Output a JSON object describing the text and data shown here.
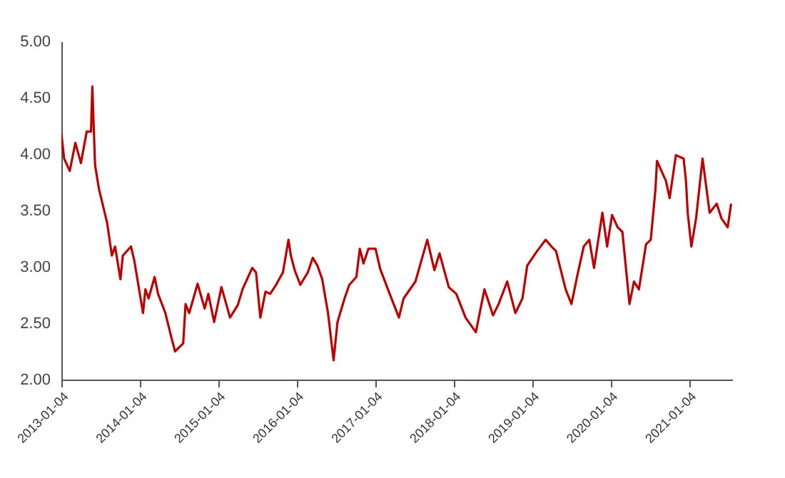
{
  "chart_data": {
    "type": "line",
    "grid": false,
    "marker": "none",
    "line_style": "solid",
    "xlim": [
      "2013-01-04",
      "2021-07-23"
    ],
    "xticks": [
      "2013-01-04",
      "2014-01-04",
      "2015-01-04",
      "2016-01-04",
      "2017-01-04",
      "2018-01-04",
      "2019-01-04",
      "2020-01-04",
      "2021-01-04"
    ],
    "ylim": [
      2,
      5
    ],
    "yticks": [
      {
        "value": 2,
        "label": "2.00"
      },
      {
        "value": 2.5,
        "label": "2.50"
      },
      {
        "value": 3,
        "label": "3.00"
      },
      {
        "value": 3.5,
        "label": "3.50"
      },
      {
        "value": 4,
        "label": "4.00"
      },
      {
        "value": 4.5,
        "label": "4.50"
      },
      {
        "value": 5,
        "label": "5.00"
      }
    ],
    "x": [
      "2013-01-04",
      "2013-01-17",
      "2013-02-12",
      "2013-03-10",
      "2013-04-05",
      "2013-05-02",
      "2013-05-22",
      "2013-05-28",
      "2013-06-10",
      "2013-06-28",
      "2013-08-05",
      "2013-08-27",
      "2013-09-11",
      "2013-10-06",
      "2013-10-17",
      "2013-11-24",
      "2013-12-09",
      "2014-01-19",
      "2014-01-30",
      "2014-02-14",
      "2014-03-14",
      "2014-03-30",
      "2014-05-03",
      "2014-05-30",
      "2014-06-17",
      "2014-07-25",
      "2014-08-05",
      "2014-08-22",
      "2014-09-30",
      "2014-11-02",
      "2014-11-19",
      "2014-12-16",
      "2015-01-19",
      "2015-02-28",
      "2015-04-05",
      "2015-04-27",
      "2015-06-11",
      "2015-06-29",
      "2015-07-19",
      "2015-08-12",
      "2015-09-03",
      "2015-09-30",
      "2015-11-01",
      "2015-11-27",
      "2015-12-08",
      "2015-12-26",
      "2016-01-21",
      "2016-02-25",
      "2016-03-19",
      "2016-04-10",
      "2016-05-02",
      "2016-05-29",
      "2016-06-24",
      "2016-07-12",
      "2016-08-14",
      "2016-09-05",
      "2016-10-08",
      "2016-10-24",
      "2016-11-10",
      "2016-12-03",
      "2017-01-05",
      "2017-01-27",
      "2017-03-12",
      "2017-04-24",
      "2017-05-16",
      "2017-07-10",
      "2017-09-03",
      "2017-10-06",
      "2017-10-30",
      "2017-12-12",
      "2018-01-16",
      "2018-02-28",
      "2018-04-17",
      "2018-05-27",
      "2018-07-06",
      "2018-08-01",
      "2018-09-10",
      "2018-10-18",
      "2018-11-20",
      "2018-12-12",
      "2019-01-27",
      "2019-03-08",
      "2019-04-04",
      "2019-04-25",
      "2019-06-09",
      "2019-07-06",
      "2019-08-03",
      "2019-09-01",
      "2019-09-27",
      "2019-10-19",
      "2019-11-27",
      "2019-12-19",
      "2020-01-11",
      "2020-02-06",
      "2020-02-28",
      "2020-04-01",
      "2020-04-22",
      "2020-05-15",
      "2020-06-17",
      "2020-07-09",
      "2020-07-31",
      "2020-08-07",
      "2020-09-18",
      "2020-10-05",
      "2020-11-03",
      "2020-12-09",
      "2020-12-20",
      "2020-12-28",
      "2021-01-14",
      "2021-02-05",
      "2021-03-07",
      "2021-04-09",
      "2021-05-12",
      "2021-06-03",
      "2021-07-02",
      "2021-07-18"
    ],
    "series": [
      {
        "color": "#c00000",
        "values": [
          4.18,
          3.96,
          3.85,
          4.1,
          3.92,
          4.2,
          4.2,
          4.6,
          3.9,
          3.69,
          3.39,
          3.1,
          3.18,
          2.89,
          3.1,
          3.18,
          3.06,
          2.59,
          2.8,
          2.72,
          2.91,
          2.76,
          2.59,
          2.38,
          2.25,
          2.32,
          2.67,
          2.59,
          2.85,
          2.63,
          2.76,
          2.51,
          2.82,
          2.55,
          2.66,
          2.8,
          2.99,
          2.95,
          2.55,
          2.78,
          2.76,
          2.84,
          2.95,
          3.24,
          3.1,
          2.97,
          2.84,
          2.95,
          3.08,
          3.01,
          2.89,
          2.59,
          2.17,
          2.51,
          2.72,
          2.84,
          2.91,
          3.16,
          3.03,
          3.16,
          3.16,
          2.98,
          2.76,
          2.55,
          2.72,
          2.87,
          3.24,
          2.97,
          3.12,
          2.82,
          2.76,
          2.55,
          2.42,
          2.8,
          2.57,
          2.67,
          2.87,
          2.59,
          2.72,
          3.01,
          3.14,
          3.24,
          3.18,
          3.14,
          2.8,
          2.67,
          2.93,
          3.18,
          3.24,
          2.99,
          3.48,
          3.18,
          3.46,
          3.35,
          3.31,
          2.67,
          2.87,
          2.8,
          3.2,
          3.24,
          3.69,
          3.94,
          3.76,
          3.61,
          3.99,
          3.96,
          3.76,
          3.48,
          3.18,
          3.43,
          3.96,
          3.48,
          3.56,
          3.43,
          3.35,
          3.56
        ]
      }
    ]
  }
}
